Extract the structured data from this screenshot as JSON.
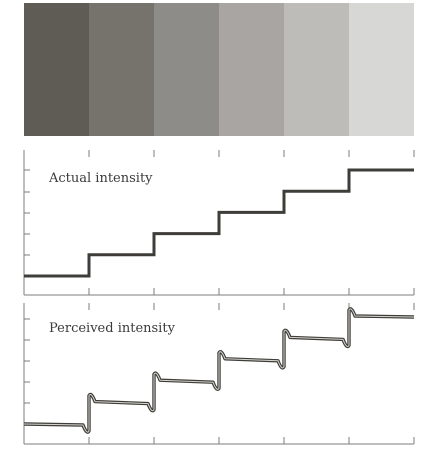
{
  "swatches": {
    "colors": [
      "#5f5c55",
      "#76736d",
      "#8d8c88",
      "#a8a5a2",
      "#bdbcb9",
      "#d7d7d5"
    ]
  },
  "actual": {
    "label": "Actual intensity",
    "levels": [
      1,
      2,
      3,
      4,
      5,
      6
    ]
  },
  "perceived": {
    "label": "Perceived intensity",
    "levels": [
      1,
      2,
      3,
      4,
      5,
      6
    ]
  }
}
